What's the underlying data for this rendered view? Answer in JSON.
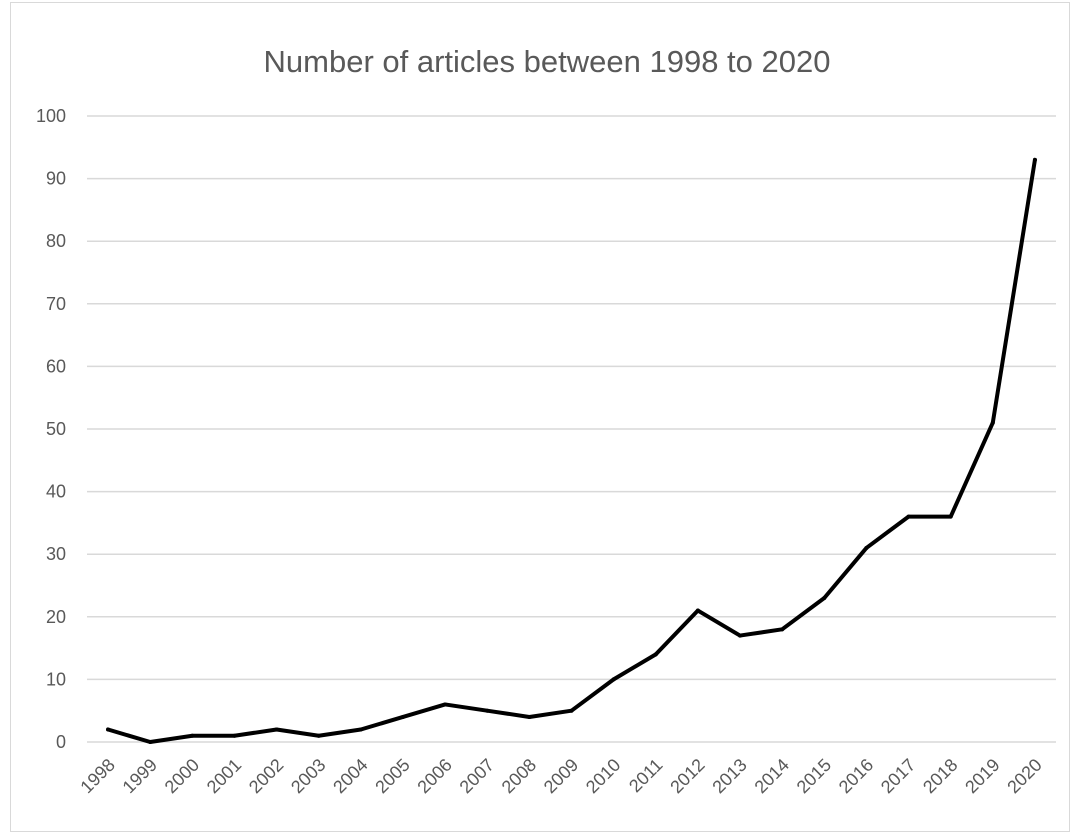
{
  "chart_data": {
    "type": "line",
    "title": "Number of articles between 1998 to 2020",
    "xlabel": "",
    "ylabel": "",
    "x": [
      "1998",
      "1999",
      "2000",
      "2001",
      "2002",
      "2003",
      "2004",
      "2005",
      "2006",
      "2007",
      "2008",
      "2009",
      "2010",
      "2011",
      "2012",
      "2013",
      "2014",
      "2015",
      "2016",
      "2017",
      "2018",
      "2019",
      "2020"
    ],
    "series": [
      {
        "values": [
          2,
          0,
          1,
          1,
          2,
          1,
          2,
          4,
          6,
          5,
          4,
          5,
          10,
          14,
          21,
          17,
          18,
          23,
          31,
          36,
          36,
          51,
          93
        ]
      }
    ],
    "ylim": [
      0,
      100
    ],
    "yticks": [
      0,
      10,
      20,
      30,
      40,
      50,
      60,
      70,
      80,
      90,
      100
    ],
    "grid": "horizontal",
    "legend": "none",
    "colors": {
      "line": "#000000",
      "grid": "#d9d9d9",
      "text": "#595959"
    }
  }
}
